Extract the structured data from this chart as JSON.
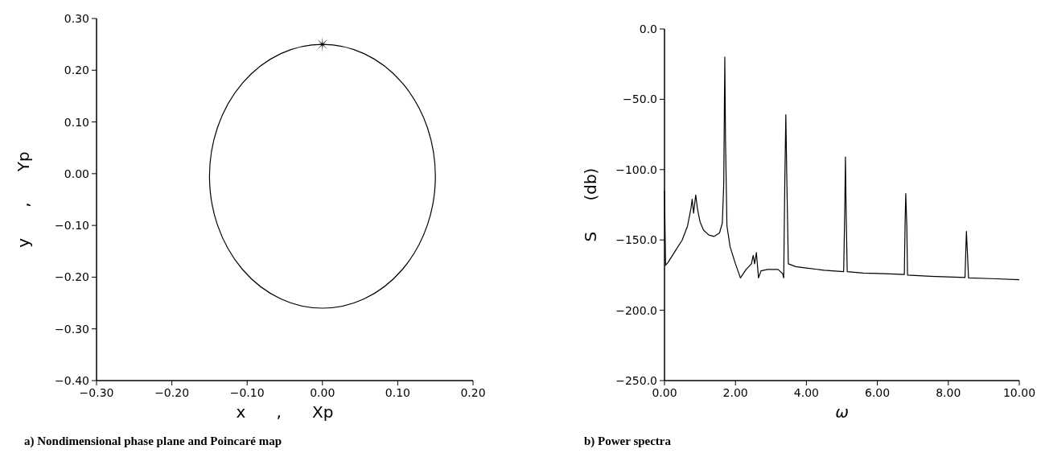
{
  "chart_data": [
    {
      "type": "scatter",
      "title": "a) Nondimensional phase plane and Poincaré map",
      "xlabel": "x      ,      Xp",
      "ylabel": "y      ,      Yp",
      "xlim": [
        -0.3,
        0.2
      ],
      "ylim": [
        -0.4,
        0.3
      ],
      "xticks": [
        {
          "value": -0.3,
          "label": "−0.30"
        },
        {
          "value": -0.2,
          "label": "−0.20"
        },
        {
          "value": -0.1,
          "label": "−0.10"
        },
        {
          "value": 0,
          "label": "0.00"
        },
        {
          "value": 0.1,
          "label": "0.10"
        },
        {
          "value": 0.2,
          "label": "0.20"
        }
      ],
      "yticks": [
        {
          "value": -0.4,
          "label": "−0.40"
        },
        {
          "value": -0.3,
          "label": "−0.30"
        },
        {
          "value": -0.2,
          "label": "−0.20"
        },
        {
          "value": -0.1,
          "label": "−0.10"
        },
        {
          "value": 0,
          "label": "0.00"
        },
        {
          "value": 0.1,
          "label": "0.10"
        },
        {
          "value": 0.2,
          "label": "0.20"
        },
        {
          "value": 0.3,
          "label": "0.30"
        }
      ],
      "series": [
        {
          "color": "#000000",
          "marker": "star",
          "x": [
            0
          ],
          "values": [
            0.25
          ]
        }
      ]
    },
    {
      "type": "line",
      "title": "b) Power spectra",
      "xlabel": "ω",
      "ylabel": "S      (db)",
      "xlim": [
        0,
        10
      ],
      "ylim": [
        -250,
        0
      ],
      "xticks": [
        {
          "value": 0,
          "label": "0.00"
        },
        {
          "value": 2,
          "label": "2.00"
        },
        {
          "value": 4,
          "label": "4.00"
        },
        {
          "value": 6,
          "label": "6.00"
        },
        {
          "value": 8,
          "label": "8.00"
        },
        {
          "value": 10,
          "label": "10.00"
        }
      ],
      "yticks": [
        {
          "value": -250,
          "label": "−250.0"
        },
        {
          "value": -200,
          "label": "−200.0"
        },
        {
          "value": -150,
          "label": "−150.0"
        },
        {
          "value": -100,
          "label": "−100.0"
        },
        {
          "value": -50,
          "label": "−50.0"
        },
        {
          "value": 0,
          "label": "0.0"
        }
      ],
      "series": [
        {
          "type": "line",
          "color": "#000000",
          "marker": "none",
          "x": [
            0,
            0.03,
            0.1,
            0.3,
            0.5,
            0.65,
            0.75,
            0.78,
            0.82,
            0.88,
            0.93,
            1.0,
            1.1,
            1.25,
            1.4,
            1.55,
            1.63,
            1.67,
            1.7,
            1.72,
            1.76,
            1.85,
            2.0,
            2.14,
            2.3,
            2.45,
            2.5,
            2.54,
            2.59,
            2.65,
            2.72,
            2.9,
            3.2,
            3.33,
            3.36,
            3.39,
            3.42,
            3.45,
            3.49,
            3.7,
            4.0,
            4.5,
            5.05,
            5.08,
            5.1,
            5.12,
            5.15,
            5.6,
            6.2,
            6.76,
            6.78,
            6.8,
            6.83,
            6.85,
            7.5,
            8.47,
            8.49,
            8.51,
            8.54,
            8.57,
            9.2,
            10.0
          ],
          "values": [
            -115,
            -168,
            -166,
            -158,
            -150,
            -140,
            -127,
            -121,
            -131,
            -118,
            -128,
            -137,
            -143,
            -146.5,
            -147.5,
            -145,
            -138,
            -110,
            -20,
            -80,
            -140,
            -155,
            -167,
            -177,
            -171,
            -167,
            -161,
            -167,
            -159,
            -177,
            -172,
            -171,
            -171,
            -174,
            -177,
            -110,
            -61,
            -110,
            -167,
            -169,
            -170,
            -171.5,
            -172.5,
            -130,
            -91,
            -130,
            -172.5,
            -173.5,
            -174,
            -174.6,
            -140,
            -117,
            -140,
            -175,
            -175.8,
            -176.7,
            -160,
            -144,
            -160,
            -177,
            -177.5,
            -178.3
          ]
        }
      ]
    }
  ]
}
